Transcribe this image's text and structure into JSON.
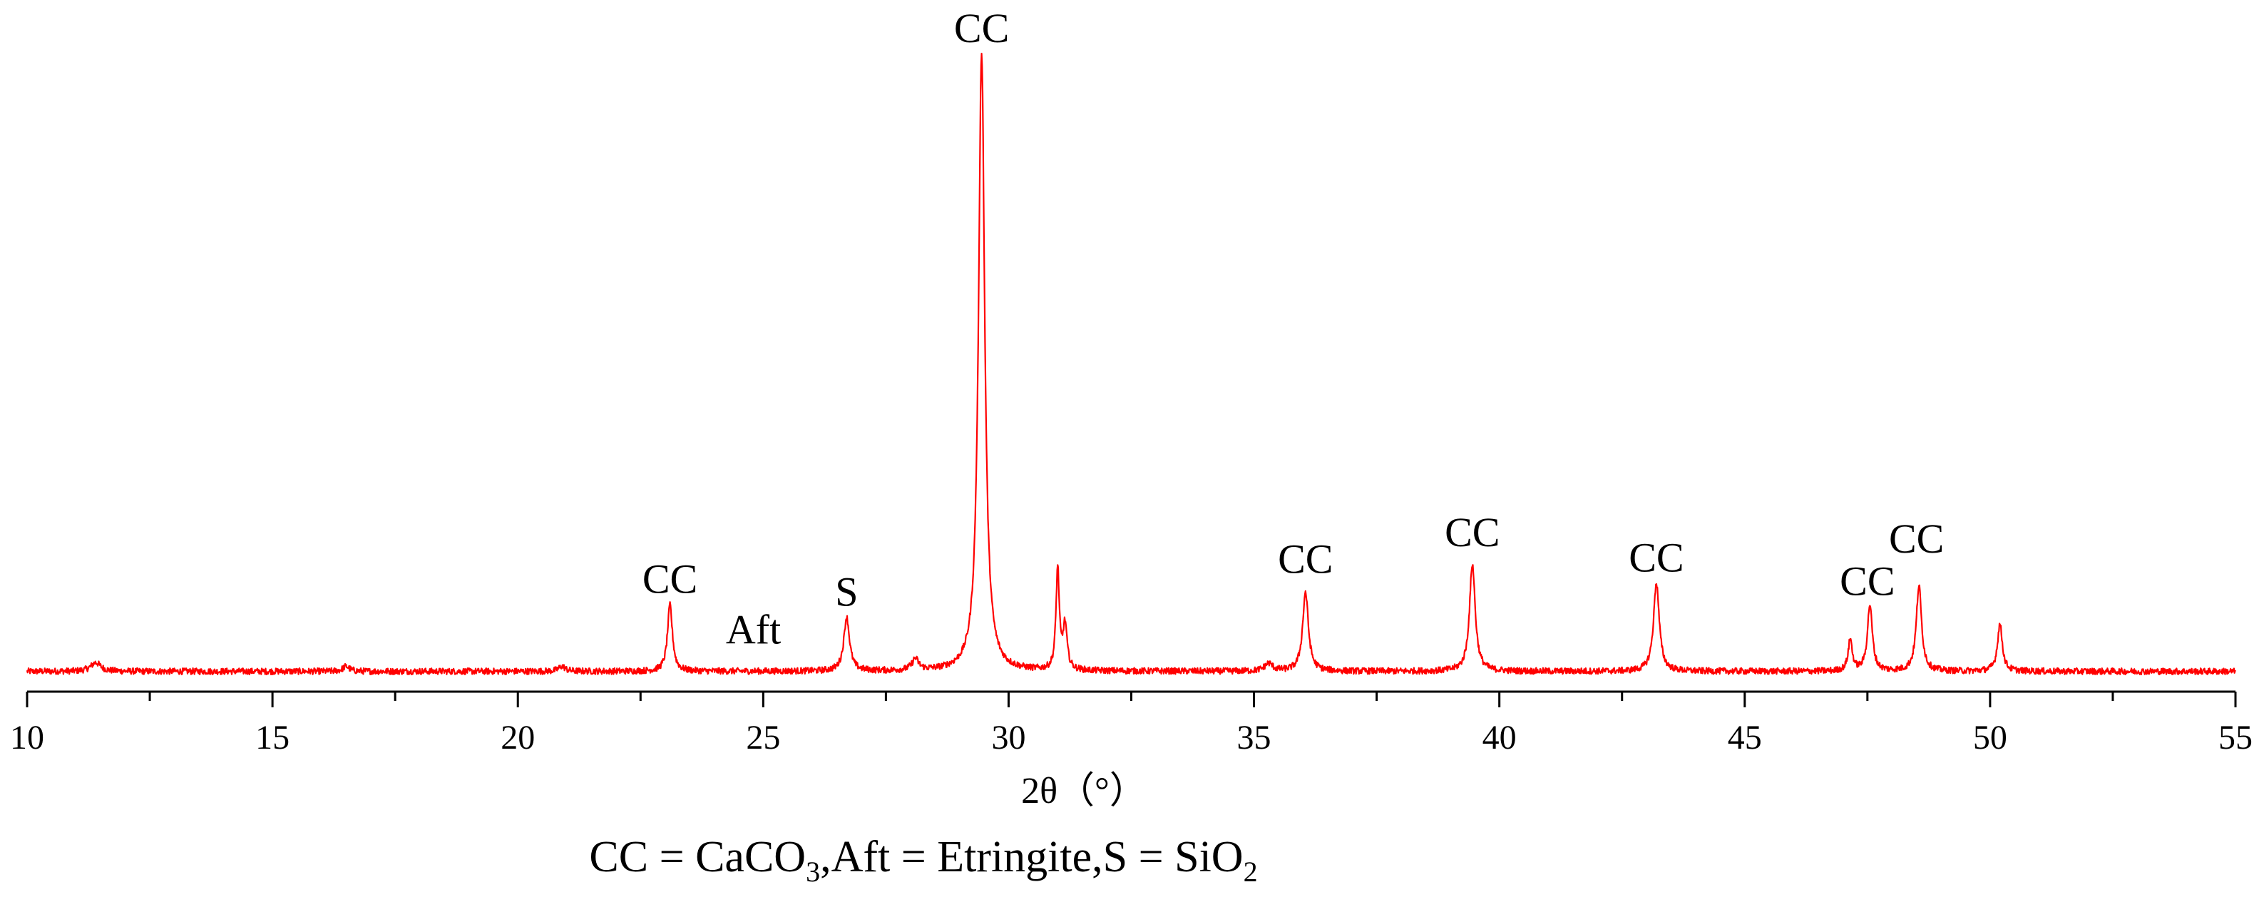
{
  "chart_data": {
    "type": "line",
    "xlabel": "2θ（°）",
    "ylabel": "",
    "xlim": [
      10,
      55
    ],
    "ylim": [
      0,
      1000
    ],
    "grid": false,
    "x_ticks": [
      "10",
      "15",
      "20",
      "25",
      "30",
      "35",
      "40",
      "45",
      "50",
      "55"
    ],
    "x_minor_step": 2.5,
    "series": [
      {
        "color": "#ff0000",
        "baseline": 14,
        "noise_amplitude": 5,
        "peaks": [
          {
            "x": 11.4,
            "y": 14,
            "w": 0.12
          },
          {
            "x": 16.5,
            "y": 8,
            "w": 0.08
          },
          {
            "x": 20.9,
            "y": 8,
            "w": 0.08
          },
          {
            "x": 23.1,
            "y": 105,
            "w": 0.06
          },
          {
            "x": 26.7,
            "y": 85,
            "w": 0.07
          },
          {
            "x": 28.1,
            "y": 18,
            "w": 0.08
          },
          {
            "x": 29.45,
            "y": 980,
            "w": 0.075
          },
          {
            "x": 31.0,
            "y": 160,
            "w": 0.04
          },
          {
            "x": 31.15,
            "y": 70,
            "w": 0.05
          },
          {
            "x": 35.3,
            "y": 12,
            "w": 0.1
          },
          {
            "x": 36.05,
            "y": 125,
            "w": 0.07
          },
          {
            "x": 39.45,
            "y": 170,
            "w": 0.07
          },
          {
            "x": 43.2,
            "y": 140,
            "w": 0.07
          },
          {
            "x": 47.15,
            "y": 50,
            "w": 0.05
          },
          {
            "x": 47.55,
            "y": 105,
            "w": 0.06
          },
          {
            "x": 48.55,
            "y": 135,
            "w": 0.065
          },
          {
            "x": 50.2,
            "y": 75,
            "w": 0.06
          }
        ]
      }
    ],
    "annotations": [
      {
        "text": "CC",
        "x": 23.1,
        "y": 138
      },
      {
        "text": "Aft",
        "x": 24.8,
        "y": 58
      },
      {
        "text": "S",
        "x": 26.7,
        "y": 118
      },
      {
        "text": "CC",
        "x": 29.45,
        "y": 1010
      },
      {
        "text": "CC",
        "x": 36.05,
        "y": 170
      },
      {
        "text": "CC",
        "x": 39.45,
        "y": 212
      },
      {
        "text": "CC",
        "x": 43.2,
        "y": 172
      },
      {
        "text": "CC",
        "x": 47.5,
        "y": 135
      },
      {
        "text": "CC",
        "x": 48.5,
        "y": 202
      }
    ],
    "legend_parts": {
      "p1": "CC = CaCO",
      "s1": "3",
      "p2": ",Aft = Etringite,S = SiO",
      "s2": "2"
    }
  }
}
